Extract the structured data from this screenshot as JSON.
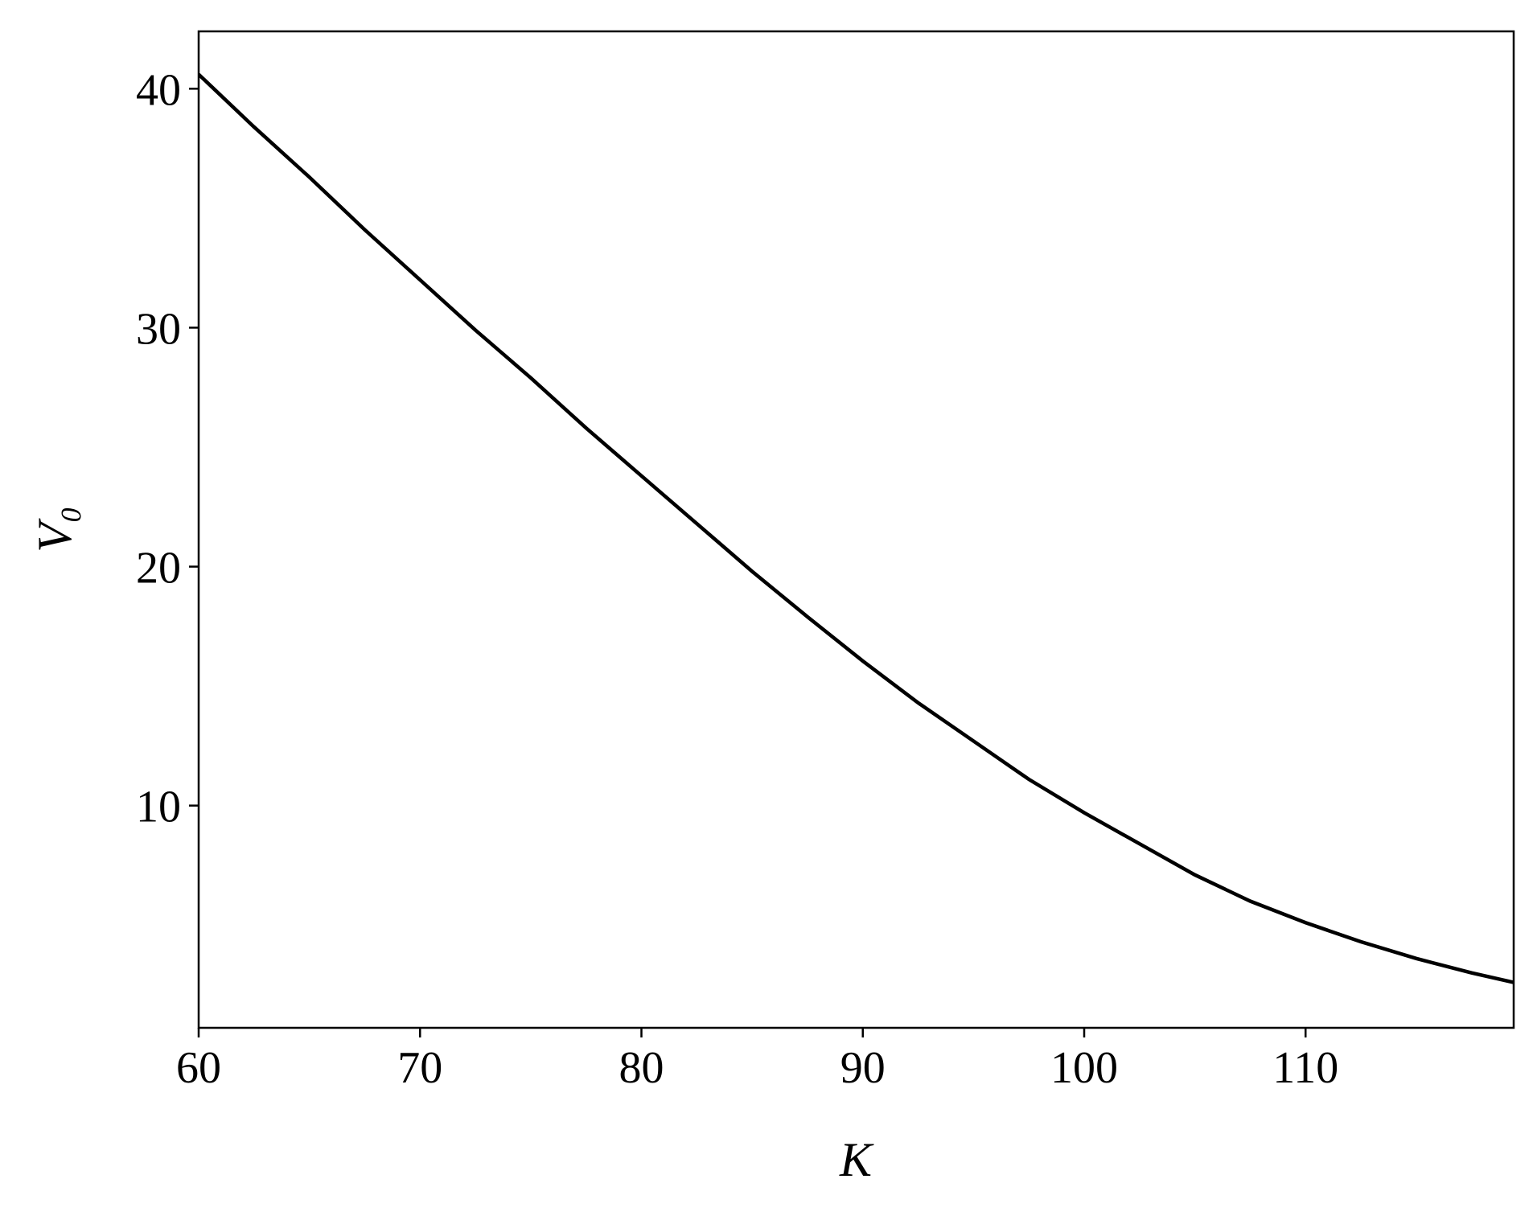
{
  "chart_data": {
    "type": "line",
    "xlabel": "K",
    "ylabel": "V₀",
    "x": [
      60,
      62.5,
      65,
      67.5,
      70,
      72.5,
      75,
      77.5,
      80,
      82.5,
      85,
      87.5,
      90,
      92.5,
      95,
      97.5,
      100,
      102.5,
      105,
      107.5,
      110,
      112.5,
      115,
      117.5,
      119.4
    ],
    "series": [
      {
        "color": "#000000",
        "values": [
          40.6,
          38.4,
          36.3,
          34.1,
          32.0,
          29.9,
          27.9,
          25.8,
          23.8,
          21.8,
          19.8,
          17.9,
          16.05,
          14.3,
          12.7,
          11.1,
          9.7,
          8.4,
          7.1,
          6.0,
          5.1,
          4.3,
          3.6,
          3.0,
          2.6
        ]
      }
    ],
    "xlim": [
      60,
      119.4
    ],
    "ylim": [
      0.7,
      42.4
    ],
    "xticks": [
      60,
      70,
      80,
      90,
      100,
      110
    ],
    "yticks": [
      10,
      20,
      30,
      40
    ]
  }
}
